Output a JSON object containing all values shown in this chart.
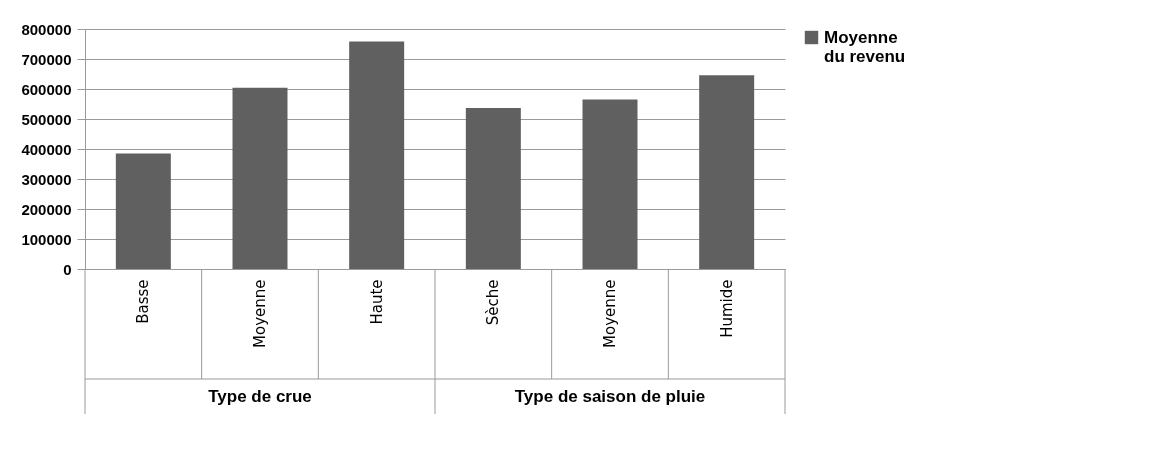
{
  "chart_data": {
    "type": "bar",
    "categories": [
      "Basse",
      "Moyenne",
      "Haute",
      "Sèche",
      "Moyenne",
      "Humide"
    ],
    "series": [
      {
        "name": "Moyenne du revenu",
        "color": "#606060",
        "values": [
          385000,
          604000,
          758000,
          537000,
          565000,
          646000
        ]
      }
    ],
    "ylim": [
      0,
      800000
    ],
    "yticks": [
      0,
      100000,
      200000,
      300000,
      400000,
      500000,
      600000,
      700000,
      800000
    ],
    "grid": "y",
    "legend": "right",
    "annotations": [
      "Type de crue",
      "Type de saison de pluie"
    ]
  }
}
